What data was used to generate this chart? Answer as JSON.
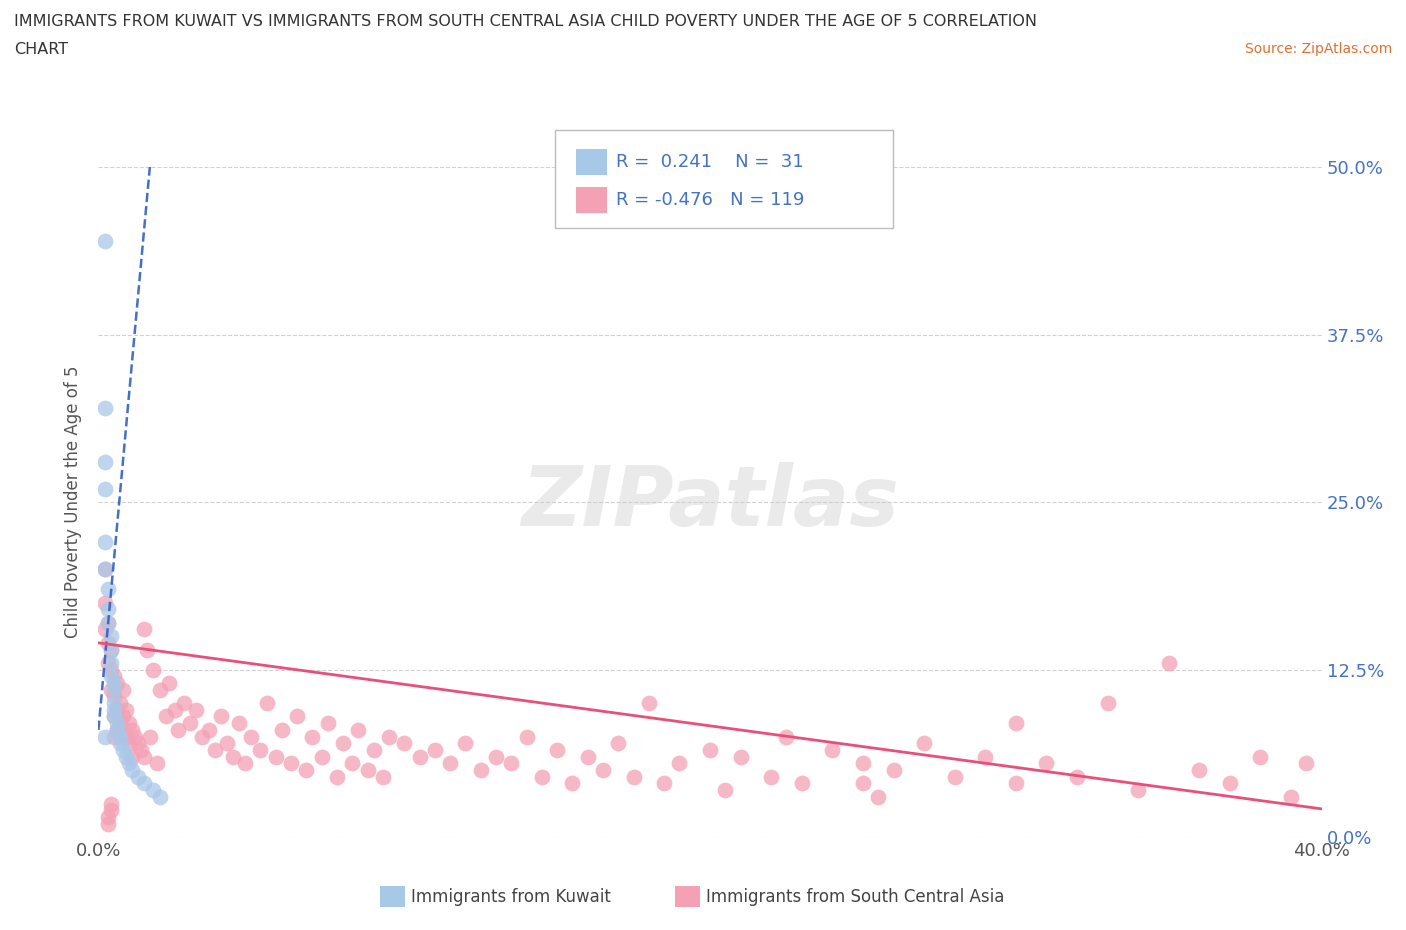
{
  "title_line1": "IMMIGRANTS FROM KUWAIT VS IMMIGRANTS FROM SOUTH CENTRAL ASIA CHILD POVERTY UNDER THE AGE OF 5 CORRELATION",
  "title_line2": "CHART",
  "source": "Source: ZipAtlas.com",
  "ylabel": "Child Poverty Under the Age of 5",
  "y_ticks_values": [
    0.0,
    0.125,
    0.25,
    0.375,
    0.5
  ],
  "x_range": [
    0.0,
    0.4
  ],
  "y_range": [
    0.0,
    0.5
  ],
  "kuwait_R": 0.241,
  "kuwait_N": 31,
  "sca_R": -0.476,
  "sca_N": 119,
  "kuwait_color": "#A8C8E8",
  "sca_color": "#F4A0B5",
  "kuwait_line_color": "#3060C0",
  "sca_line_color": "#E8507A",
  "kuwait_scatter_x": [
    0.002,
    0.002,
    0.002,
    0.002,
    0.002,
    0.002,
    0.003,
    0.003,
    0.003,
    0.004,
    0.004,
    0.004,
    0.004,
    0.005,
    0.005,
    0.005,
    0.005,
    0.005,
    0.006,
    0.006,
    0.007,
    0.007,
    0.008,
    0.009,
    0.01,
    0.011,
    0.013,
    0.015,
    0.018,
    0.02,
    0.002
  ],
  "kuwait_scatter_y": [
    0.445,
    0.32,
    0.28,
    0.26,
    0.22,
    0.2,
    0.185,
    0.17,
    0.16,
    0.15,
    0.14,
    0.13,
    0.12,
    0.115,
    0.11,
    0.1,
    0.095,
    0.09,
    0.085,
    0.08,
    0.075,
    0.07,
    0.065,
    0.06,
    0.055,
    0.05,
    0.045,
    0.04,
    0.035,
    0.03,
    0.075
  ],
  "sca_scatter_x": [
    0.002,
    0.002,
    0.002,
    0.003,
    0.003,
    0.003,
    0.004,
    0.004,
    0.004,
    0.005,
    0.005,
    0.005,
    0.005,
    0.006,
    0.006,
    0.006,
    0.007,
    0.007,
    0.008,
    0.008,
    0.009,
    0.009,
    0.01,
    0.01,
    0.011,
    0.011,
    0.012,
    0.013,
    0.014,
    0.015,
    0.015,
    0.016,
    0.017,
    0.018,
    0.019,
    0.02,
    0.022,
    0.023,
    0.025,
    0.026,
    0.028,
    0.03,
    0.032,
    0.034,
    0.036,
    0.038,
    0.04,
    0.042,
    0.044,
    0.046,
    0.048,
    0.05,
    0.053,
    0.055,
    0.058,
    0.06,
    0.063,
    0.065,
    0.068,
    0.07,
    0.073,
    0.075,
    0.078,
    0.08,
    0.083,
    0.085,
    0.088,
    0.09,
    0.093,
    0.095,
    0.1,
    0.105,
    0.11,
    0.115,
    0.12,
    0.125,
    0.13,
    0.135,
    0.14,
    0.145,
    0.15,
    0.155,
    0.16,
    0.165,
    0.17,
    0.175,
    0.18,
    0.185,
    0.19,
    0.2,
    0.205,
    0.21,
    0.22,
    0.225,
    0.23,
    0.24,
    0.25,
    0.255,
    0.26,
    0.27,
    0.28,
    0.29,
    0.3,
    0.31,
    0.32,
    0.33,
    0.34,
    0.35,
    0.36,
    0.37,
    0.38,
    0.39,
    0.395,
    0.3,
    0.25,
    0.003,
    0.003,
    0.004,
    0.004
  ],
  "sca_scatter_y": [
    0.2,
    0.175,
    0.155,
    0.16,
    0.145,
    0.13,
    0.14,
    0.125,
    0.11,
    0.12,
    0.105,
    0.09,
    0.075,
    0.115,
    0.095,
    0.08,
    0.1,
    0.085,
    0.11,
    0.09,
    0.095,
    0.075,
    0.085,
    0.07,
    0.08,
    0.06,
    0.075,
    0.07,
    0.065,
    0.155,
    0.06,
    0.14,
    0.075,
    0.125,
    0.055,
    0.11,
    0.09,
    0.115,
    0.095,
    0.08,
    0.1,
    0.085,
    0.095,
    0.075,
    0.08,
    0.065,
    0.09,
    0.07,
    0.06,
    0.085,
    0.055,
    0.075,
    0.065,
    0.1,
    0.06,
    0.08,
    0.055,
    0.09,
    0.05,
    0.075,
    0.06,
    0.085,
    0.045,
    0.07,
    0.055,
    0.08,
    0.05,
    0.065,
    0.045,
    0.075,
    0.07,
    0.06,
    0.065,
    0.055,
    0.07,
    0.05,
    0.06,
    0.055,
    0.075,
    0.045,
    0.065,
    0.04,
    0.06,
    0.05,
    0.07,
    0.045,
    0.1,
    0.04,
    0.055,
    0.065,
    0.035,
    0.06,
    0.045,
    0.075,
    0.04,
    0.065,
    0.055,
    0.03,
    0.05,
    0.07,
    0.045,
    0.06,
    0.04,
    0.055,
    0.045,
    0.1,
    0.035,
    0.13,
    0.05,
    0.04,
    0.06,
    0.03,
    0.055,
    0.085,
    0.04,
    0.01,
    0.015,
    0.02,
    0.025
  ],
  "legend_label_kuwait": "Immigrants from Kuwait",
  "legend_label_sca": "Immigrants from South Central Asia",
  "background_color": "#FFFFFF",
  "grid_color": "#CCCCCC"
}
